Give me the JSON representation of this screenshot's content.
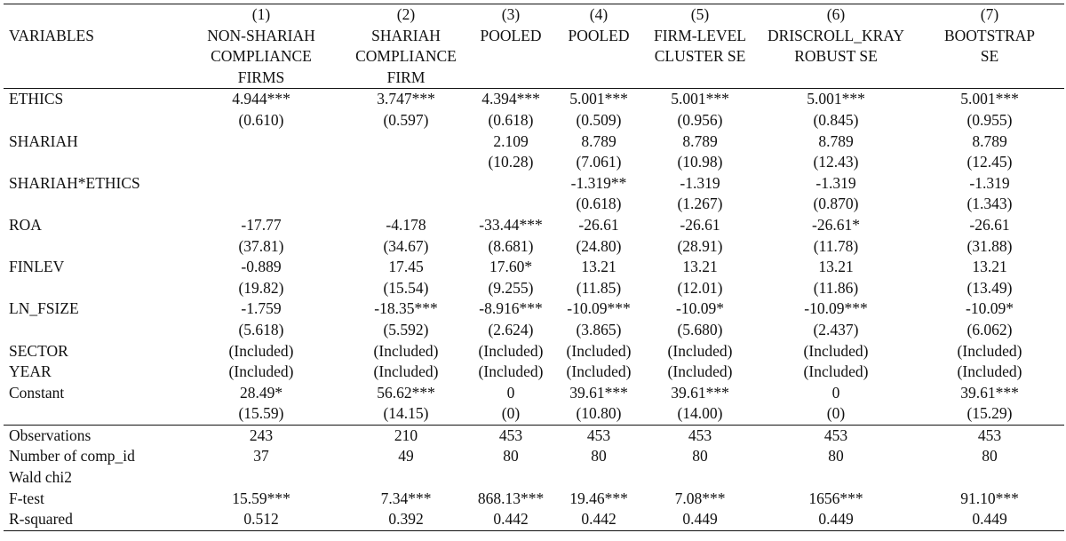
{
  "header": {
    "variables_label": "VARIABLES",
    "columns": [
      {
        "num": "(1)",
        "lines": [
          "NON-SHARIAH",
          "COMPLIANCE",
          "FIRMS"
        ]
      },
      {
        "num": "(2)",
        "lines": [
          "SHARIAH",
          "COMPLIANCE",
          "FIRM"
        ]
      },
      {
        "num": "(3)",
        "lines": [
          "POOLED",
          "",
          ""
        ]
      },
      {
        "num": "(4)",
        "lines": [
          "POOLED",
          "",
          ""
        ]
      },
      {
        "num": "(5)",
        "lines": [
          "FIRM-LEVEL",
          "CLUSTER SE",
          ""
        ]
      },
      {
        "num": "(6)",
        "lines": [
          "DRISCROLL_KRAY",
          "ROBUST SE",
          ""
        ]
      },
      {
        "num": "(7)",
        "lines": [
          "BOOTSTRAP",
          "SE",
          ""
        ]
      }
    ]
  },
  "body_rows": [
    {
      "label": "ETHICS",
      "values": [
        "4.944***",
        "3.747***",
        "4.394***",
        "5.001***",
        "5.001***",
        "5.001***",
        "5.001***"
      ]
    },
    {
      "label": "",
      "values": [
        "(0.610)",
        "(0.597)",
        "(0.618)",
        "(0.509)",
        "(0.956)",
        "(0.845)",
        "(0.955)"
      ]
    },
    {
      "label": "SHARIAH",
      "values": [
        "",
        "",
        "2.109",
        "8.789",
        "8.789",
        "8.789",
        "8.789"
      ]
    },
    {
      "label": "",
      "values": [
        "",
        "",
        "(10.28)",
        "(7.061)",
        "(10.98)",
        "(12.43)",
        "(12.45)"
      ]
    },
    {
      "label": "SHARIAH*ETHICS",
      "values": [
        "",
        "",
        "",
        "-1.319**",
        "-1.319",
        "-1.319",
        "-1.319"
      ]
    },
    {
      "label": "",
      "values": [
        "",
        "",
        "",
        "(0.618)",
        "(1.267)",
        "(0.870)",
        "(1.343)"
      ]
    },
    {
      "label": "ROA",
      "values": [
        "-17.77",
        "-4.178",
        "-33.44***",
        "-26.61",
        "-26.61",
        "-26.61*",
        "-26.61"
      ]
    },
    {
      "label": "",
      "values": [
        "(37.81)",
        "(34.67)",
        "(8.681)",
        "(24.80)",
        "(28.91)",
        "(11.78)",
        "(31.88)"
      ]
    },
    {
      "label": "FINLEV",
      "values": [
        "-0.889",
        "17.45",
        "17.60*",
        "13.21",
        "13.21",
        "13.21",
        "13.21"
      ]
    },
    {
      "label": "",
      "values": [
        "(19.82)",
        "(15.54)",
        "(9.255)",
        "(11.85)",
        "(12.01)",
        "(11.86)",
        "(13.49)"
      ]
    },
    {
      "label": "LN_FSIZE",
      "values": [
        "-1.759",
        "-18.35***",
        "-8.916***",
        "-10.09***",
        "-10.09*",
        "-10.09***",
        "-10.09*"
      ]
    },
    {
      "label": "",
      "values": [
        "(5.618)",
        "(5.592)",
        "(2.624)",
        "(3.865)",
        "(5.680)",
        "(2.437)",
        "(6.062)"
      ]
    },
    {
      "label": "SECTOR",
      "values": [
        "(Included)",
        "(Included)",
        "(Included)",
        "(Included)",
        "(Included)",
        "(Included)",
        "(Included)"
      ]
    },
    {
      "label": "YEAR",
      "values": [
        "(Included)",
        "(Included)",
        "(Included)",
        "(Included)",
        "(Included)",
        "(Included)",
        "(Included)"
      ]
    },
    {
      "label": "Constant",
      "values": [
        "28.49*",
        "56.62***",
        "0",
        "39.61***",
        "39.61***",
        "0",
        "39.61***"
      ]
    },
    {
      "label": "",
      "values": [
        "(15.59)",
        "(14.15)",
        "(0)",
        "(10.80)",
        "(14.00)",
        "(0)",
        "(15.29)"
      ]
    }
  ],
  "stat_rows": [
    {
      "label": "Observations",
      "values": [
        "243",
        "210",
        "453",
        "453",
        "453",
        "453",
        "453"
      ]
    },
    {
      "label": "Number of comp_id",
      "values": [
        "37",
        "49",
        "80",
        "80",
        "80",
        "80",
        "80"
      ]
    },
    {
      "label": "Wald chi2",
      "values": [
        "",
        "",
        "",
        "",
        "",
        "",
        ""
      ]
    },
    {
      "label": "F-test",
      "values": [
        "15.59***",
        "7.34***",
        "868.13***",
        "19.46***",
        "7.08***",
        "1656***",
        "91.10***"
      ]
    },
    {
      "label": "R-squared",
      "values": [
        "0.512",
        "0.392",
        "0.442",
        "0.442",
        "0.449",
        "0.449",
        "0.449"
      ]
    }
  ]
}
